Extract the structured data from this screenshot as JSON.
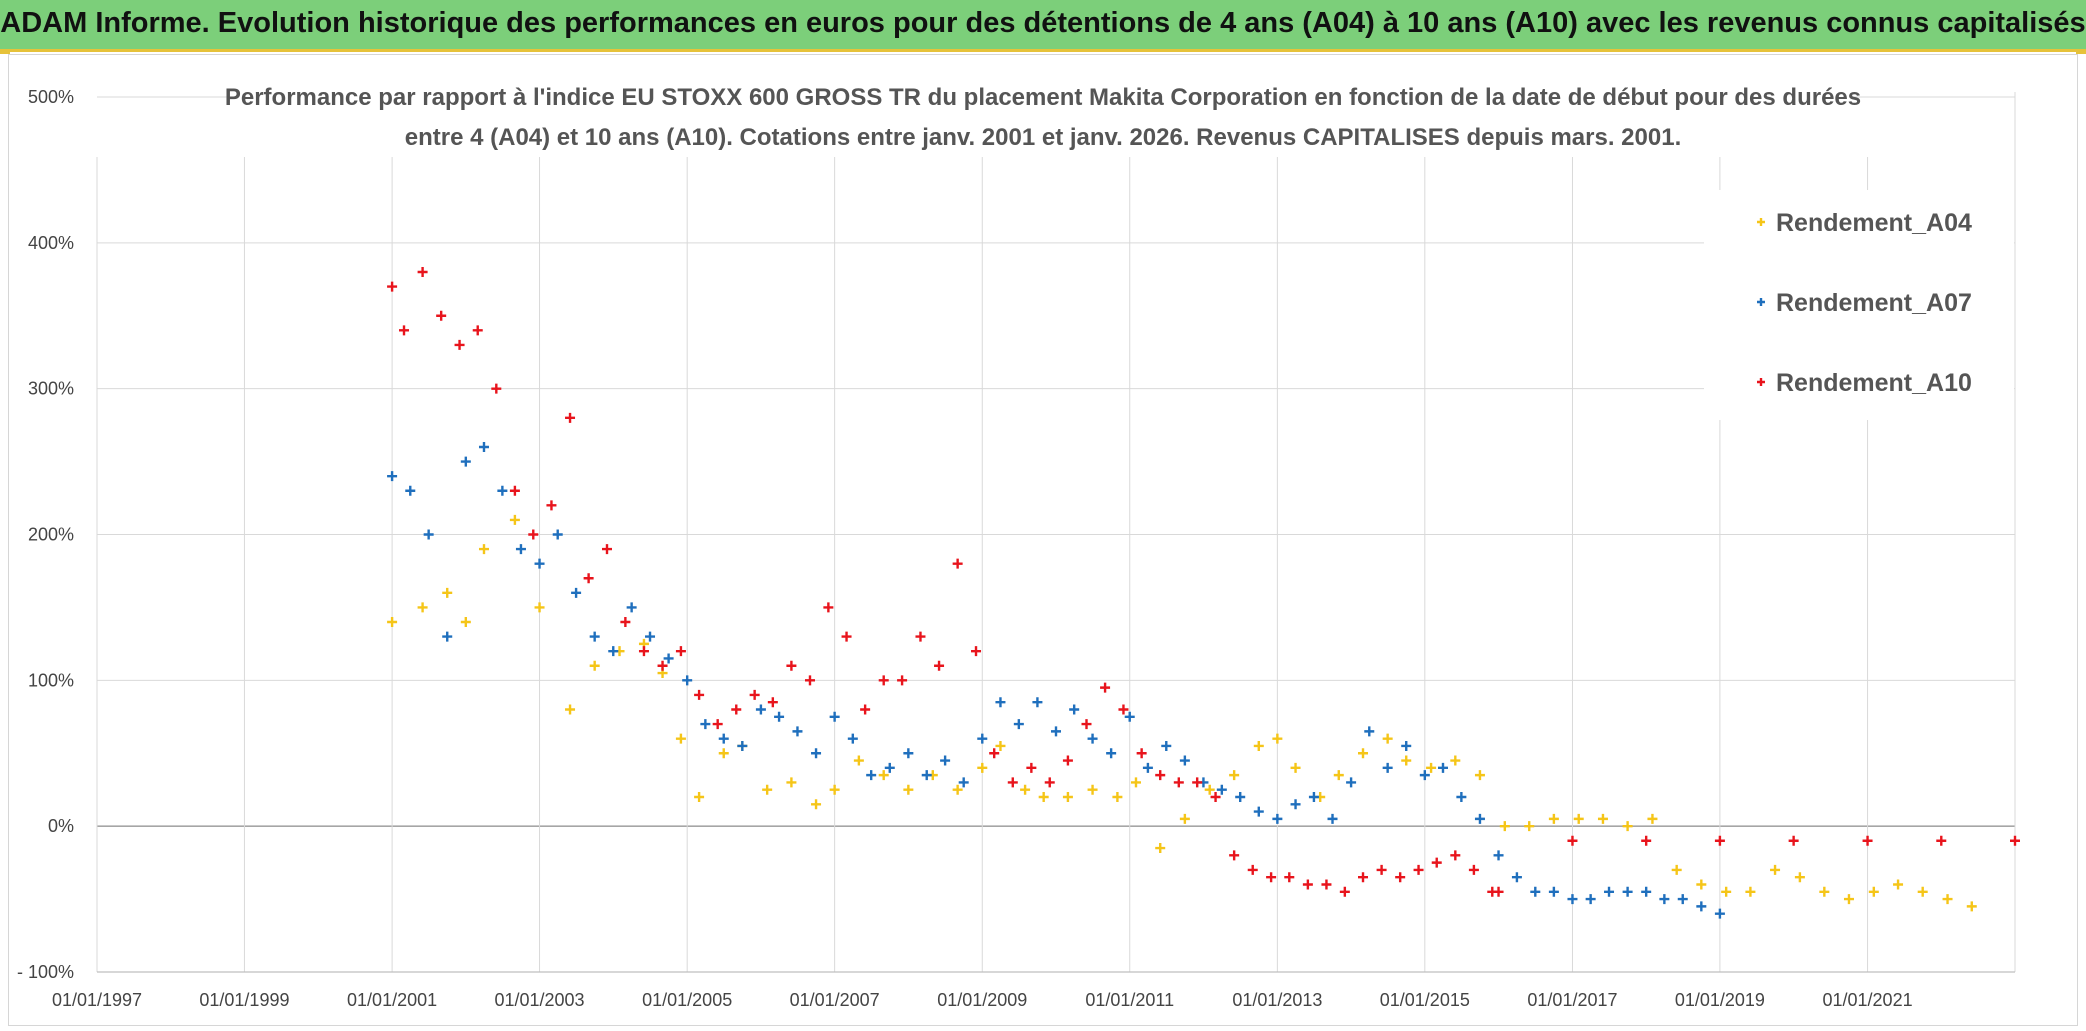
{
  "banner": {
    "title": "ADAM Informe. Evolution historique des performances en euros pour des détentions de 4 ans (A04) à 10 ans (A10) avec les revenus connus capitalisés"
  },
  "colors": {
    "banner_bg": "#7ccf7a",
    "banner_border": "#e6c23a",
    "A04": "#f5c518",
    "A07": "#1f6fbd",
    "A10": "#e8141c",
    "grid": "#d9d9d9",
    "zero_line": "#a6a6a6"
  },
  "chart_data": {
    "type": "scatter",
    "title_lines": [
      "Performance par rapport à l'indice EU STOXX 600 GROSS TR  du placement Makita Corporation en fonction de la date de début pour des durées",
      "entre 4 (A04) et 10 ans (A10). Cotations entre janv. 2001 et janv. 2026. Revenus CAPITALISES depuis mars. 2001."
    ],
    "xlabel": "",
    "ylabel": "",
    "y_ticks": [
      "500%",
      "400%",
      "300%",
      "200%",
      "100%",
      "0%",
      "- 100%"
    ],
    "x_ticks": [
      "01/01/1997",
      "01/01/1999",
      "01/01/2001",
      "01/01/2003",
      "01/01/2005",
      "01/01/2007",
      "01/01/2009",
      "01/01/2011",
      "01/01/2013",
      "01/01/2015",
      "01/01/2017",
      "01/01/2019",
      "01/01/2021"
    ],
    "xlim": [
      "1997-01-01",
      "2023-01-01"
    ],
    "ylim": [
      -100,
      500
    ],
    "grid": true,
    "legend_position": "top-right",
    "series": [
      {
        "name": "Rendement_A04",
        "marker": "+",
        "x": [
          "2001-01",
          "2001-06",
          "2001-10",
          "2002-01",
          "2002-04",
          "2002-09",
          "2003-01",
          "2003-06",
          "2003-10",
          "2004-02",
          "2004-06",
          "2004-09",
          "2004-12",
          "2005-03",
          "2005-07",
          "2005-10",
          "2006-02",
          "2006-06",
          "2006-10",
          "2007-01",
          "2007-05",
          "2007-09",
          "2008-01",
          "2008-05",
          "2008-09",
          "2009-01",
          "2009-04",
          "2009-08",
          "2009-11",
          "2010-03",
          "2010-07",
          "2010-11",
          "2011-02",
          "2011-06",
          "2011-10",
          "2012-02",
          "2012-06",
          "2012-10",
          "2013-01",
          "2013-04",
          "2013-08",
          "2013-11",
          "2014-03",
          "2014-07",
          "2014-10",
          "2015-02",
          "2015-06",
          "2015-10",
          "2016-02",
          "2016-06",
          "2016-10",
          "2017-02",
          "2017-06",
          "2017-10",
          "2018-02",
          "2018-06",
          "2018-10",
          "2019-02",
          "2019-06",
          "2019-10",
          "2020-02",
          "2020-06",
          "2020-10",
          "2021-02",
          "2021-06",
          "2021-10",
          "2022-02",
          "2022-06"
        ],
        "y": [
          140,
          150,
          160,
          140,
          190,
          210,
          150,
          80,
          110,
          120,
          125,
          105,
          60,
          20,
          50,
          55,
          25,
          30,
          15,
          25,
          45,
          35,
          25,
          35,
          25,
          40,
          55,
          25,
          20,
          20,
          25,
          20,
          30,
          -15,
          5,
          25,
          35,
          55,
          60,
          40,
          20,
          35,
          50,
          60,
          45,
          40,
          45,
          35,
          0,
          0,
          5,
          5,
          5,
          0,
          5,
          -30,
          -40,
          -45,
          -45,
          -30,
          -35,
          -45,
          -50,
          -45,
          -40,
          -45,
          -50,
          -55
        ]
      },
      {
        "name": "Rendement_A07",
        "marker": "+",
        "x": [
          "2001-01",
          "2001-04",
          "2001-07",
          "2001-10",
          "2002-01",
          "2002-04",
          "2002-07",
          "2002-10",
          "2003-01",
          "2003-04",
          "2003-07",
          "2003-10",
          "2004-01",
          "2004-04",
          "2004-07",
          "2004-10",
          "2005-01",
          "2005-04",
          "2005-07",
          "2005-10",
          "2006-01",
          "2006-04",
          "2006-07",
          "2006-10",
          "2007-01",
          "2007-04",
          "2007-07",
          "2007-10",
          "2008-01",
          "2008-04",
          "2008-07",
          "2008-10",
          "2009-01",
          "2009-04",
          "2009-07",
          "2009-10",
          "2010-01",
          "2010-04",
          "2010-07",
          "2010-10",
          "2011-01",
          "2011-04",
          "2011-07",
          "2011-10",
          "2012-01",
          "2012-04",
          "2012-07",
          "2012-10",
          "2013-01",
          "2013-04",
          "2013-07",
          "2013-10",
          "2014-01",
          "2014-04",
          "2014-07",
          "2014-10",
          "2015-01",
          "2015-04",
          "2015-07",
          "2015-10",
          "2016-01",
          "2016-04",
          "2016-07",
          "2016-10",
          "2017-01",
          "2017-04",
          "2017-07",
          "2017-10",
          "2018-01",
          "2018-04",
          "2018-07",
          "2018-10",
          "2019-01"
        ],
        "y": [
          240,
          230,
          200,
          130,
          250,
          260,
          230,
          190,
          180,
          200,
          160,
          130,
          120,
          150,
          130,
          115,
          100,
          70,
          60,
          55,
          80,
          75,
          65,
          50,
          75,
          60,
          35,
          40,
          50,
          35,
          45,
          30,
          60,
          85,
          70,
          85,
          65,
          80,
          60,
          50,
          75,
          40,
          55,
          45,
          30,
          25,
          20,
          10,
          5,
          15,
          20,
          5,
          30,
          65,
          40,
          55,
          35,
          40,
          20,
          5,
          -20,
          -35,
          -45,
          -45,
          -50,
          -50,
          -45,
          -45,
          -45,
          -50,
          -50,
          -55,
          -60
        ]
      },
      {
        "name": "Rendement_A10",
        "marker": "+",
        "x": [
          "2001-01",
          "2001-03",
          "2001-06",
          "2001-09",
          "2001-12",
          "2002-03",
          "2002-06",
          "2002-09",
          "2002-12",
          "2003-03",
          "2003-06",
          "2003-09",
          "2003-12",
          "2004-03",
          "2004-06",
          "2004-09",
          "2004-12",
          "2005-03",
          "2005-06",
          "2005-09",
          "2005-12",
          "2006-03",
          "2006-06",
          "2006-09",
          "2006-12",
          "2007-03",
          "2007-06",
          "2007-09",
          "2007-12",
          "2008-03",
          "2008-06",
          "2008-09",
          "2008-12",
          "2009-03",
          "2009-06",
          "2009-09",
          "2009-12",
          "2010-03",
          "2010-06",
          "2010-09",
          "2010-12",
          "2011-03",
          "2011-06",
          "2011-09",
          "2011-12",
          "2012-03",
          "2012-06",
          "2012-09",
          "2012-12",
          "2013-03",
          "2013-06",
          "2013-09",
          "2013-12",
          "2014-03",
          "2014-06",
          "2014-09",
          "2014-12",
          "2015-03",
          "2015-06",
          "2015-09",
          "2015-12",
          "2016-01",
          "2017-01",
          "2018-01",
          "2019-01",
          "2020-01",
          "2021-01",
          "2022-01",
          "2023-01"
        ],
        "y": [
          370,
          340,
          380,
          350,
          330,
          340,
          300,
          230,
          200,
          220,
          280,
          170,
          190,
          140,
          120,
          110,
          120,
          90,
          70,
          80,
          90,
          85,
          110,
          100,
          150,
          130,
          80,
          100,
          100,
          130,
          110,
          180,
          120,
          50,
          30,
          40,
          30,
          45,
          70,
          95,
          80,
          50,
          35,
          30,
          30,
          20,
          -20,
          -30,
          -35,
          -35,
          -40,
          -40,
          -45,
          -35,
          -30,
          -35,
          -30,
          -25,
          -20,
          -30,
          -45,
          -45,
          -10,
          -10,
          -10,
          -10,
          -10,
          -10,
          -10
        ]
      }
    ]
  }
}
